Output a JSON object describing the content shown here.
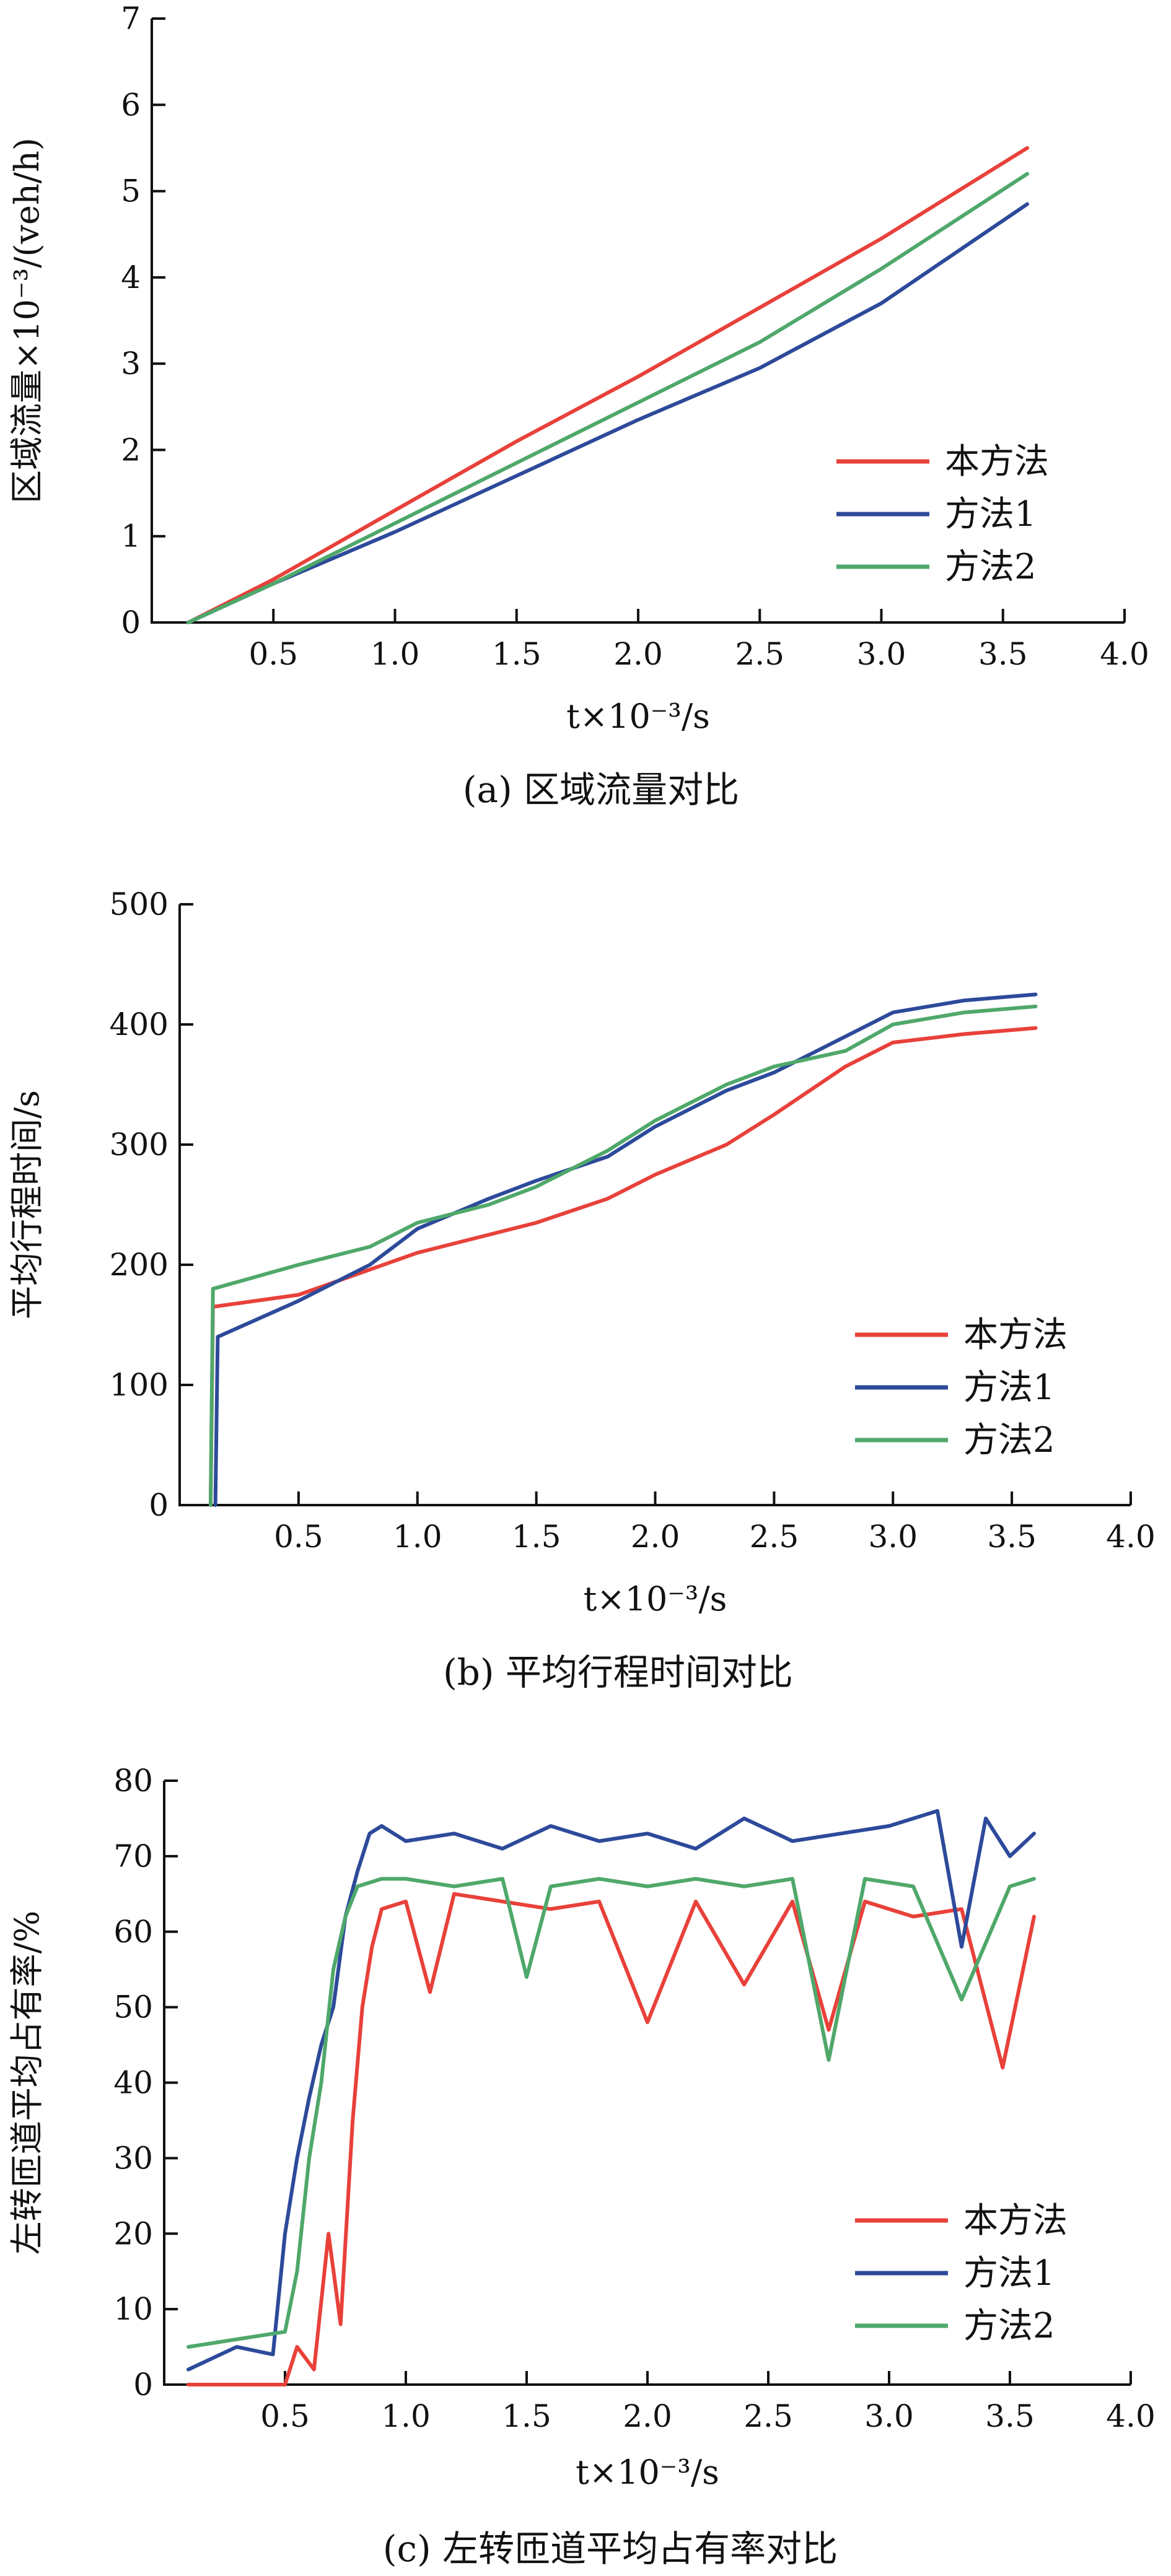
{
  "colors": {
    "method_this": "#e8413a",
    "method1": "#2d4a9a",
    "method2": "#4fa86a"
  },
  "chart_data": [
    {
      "type": "line",
      "caption": "(a) 区域流量对比",
      "xlabel": "t×10⁻³/s",
      "ylabel": "区域流量×10⁻³/(veh/h)",
      "xlim": [
        0,
        4.0
      ],
      "ylim": [
        0,
        7
      ],
      "xticks": [
        "0.5",
        "1.0",
        "1.5",
        "2.0",
        "2.5",
        "3.0",
        "3.5",
        "4.0"
      ],
      "yticks": [
        "0",
        "1",
        "2",
        "3",
        "4",
        "5",
        "6",
        "7"
      ],
      "legend_position": "bottom-right",
      "series": [
        {
          "name": "本方法",
          "color": "#e8413a",
          "x": [
            0.15,
            0.5,
            1.0,
            1.5,
            2.0,
            2.5,
            3.0,
            3.6
          ],
          "y": [
            0,
            0.5,
            1.3,
            2.1,
            2.85,
            3.65,
            4.45,
            5.5
          ]
        },
        {
          "name": "方法1",
          "color": "#2d4a9a",
          "x": [
            0.15,
            0.5,
            1.0,
            1.5,
            2.0,
            2.5,
            3.0,
            3.6
          ],
          "y": [
            0,
            0.45,
            1.05,
            1.7,
            2.35,
            2.95,
            3.7,
            4.85
          ]
        },
        {
          "name": "方法2",
          "color": "#4fa86a",
          "x": [
            0.15,
            0.5,
            1.0,
            1.5,
            2.0,
            2.5,
            3.0,
            3.6
          ],
          "y": [
            0,
            0.45,
            1.15,
            1.85,
            2.55,
            3.25,
            4.1,
            5.2
          ]
        }
      ]
    },
    {
      "type": "line",
      "caption": "(b) 平均行程时间对比",
      "xlabel": "t×10⁻³/s",
      "ylabel": "平均行程时间/s",
      "xlim": [
        0,
        4.0
      ],
      "ylim": [
        0,
        500
      ],
      "xticks": [
        "0.5",
        "1.0",
        "1.5",
        "2.0",
        "2.5",
        "3.0",
        "3.5",
        "4.0"
      ],
      "yticks": [
        "0",
        "100",
        "200",
        "300",
        "400",
        "500"
      ],
      "legend_position": "bottom-right",
      "series": [
        {
          "name": "本方法",
          "color": "#e8413a",
          "x": [
            0.13,
            0.14,
            0.5,
            1.0,
            1.5,
            1.8,
            2.0,
            2.3,
            2.5,
            2.8,
            3.0,
            3.3,
            3.6
          ],
          "y": [
            0,
            165,
            175,
            210,
            235,
            255,
            275,
            300,
            325,
            365,
            385,
            392,
            397
          ]
        },
        {
          "name": "方法1",
          "color": "#2d4a9a",
          "x": [
            0.15,
            0.16,
            0.5,
            0.8,
            1.0,
            1.3,
            1.5,
            1.8,
            2.0,
            2.3,
            2.5,
            2.8,
            3.0,
            3.3,
            3.6
          ],
          "y": [
            0,
            140,
            170,
            200,
            230,
            255,
            270,
            290,
            315,
            345,
            360,
            390,
            410,
            420,
            425
          ]
        },
        {
          "name": "方法2",
          "color": "#4fa86a",
          "x": [
            0.13,
            0.14,
            0.5,
            0.8,
            1.0,
            1.3,
            1.5,
            1.8,
            2.0,
            2.3,
            2.5,
            2.8,
            3.0,
            3.3,
            3.6
          ],
          "y": [
            0,
            180,
            200,
            215,
            235,
            250,
            265,
            295,
            320,
            350,
            365,
            378,
            400,
            410,
            415
          ]
        }
      ]
    },
    {
      "type": "line",
      "caption": "(c) 左转匝道平均占有率对比",
      "xlabel": "t×10⁻³/s",
      "ylabel": "左转匝道平均占有率/%",
      "xlim": [
        0,
        4.0
      ],
      "ylim": [
        0,
        80
      ],
      "xticks": [
        "0.5",
        "1.0",
        "1.5",
        "2.0",
        "2.5",
        "3.0",
        "3.5",
        "4.0"
      ],
      "yticks": [
        "0",
        "10",
        "20",
        "30",
        "40",
        "50",
        "60",
        "70",
        "80"
      ],
      "legend_position": "bottom-right",
      "series": [
        {
          "name": "本方法",
          "color": "#e8413a",
          "x": [
            0.1,
            0.5,
            0.55,
            0.62,
            0.68,
            0.73,
            0.78,
            0.82,
            0.86,
            0.9,
            1.0,
            1.1,
            1.2,
            1.4,
            1.6,
            1.8,
            2.0,
            2.2,
            2.4,
            2.6,
            2.75,
            2.9,
            3.1,
            3.3,
            3.47,
            3.6
          ],
          "y": [
            0,
            0,
            5,
            2,
            20,
            8,
            35,
            50,
            58,
            63,
            64,
            52,
            65,
            64,
            63,
            64,
            48,
            64,
            53,
            64,
            47,
            64,
            62,
            63,
            42,
            62
          ]
        },
        {
          "name": "方法1",
          "color": "#2d4a9a",
          "x": [
            0.1,
            0.3,
            0.45,
            0.5,
            0.55,
            0.6,
            0.65,
            0.7,
            0.75,
            0.8,
            0.85,
            0.9,
            1.0,
            1.2,
            1.4,
            1.6,
            1.8,
            2.0,
            2.2,
            2.4,
            2.6,
            2.8,
            3.0,
            3.2,
            3.3,
            3.4,
            3.5,
            3.6
          ],
          "y": [
            2,
            5,
            4,
            20,
            30,
            38,
            45,
            50,
            62,
            68,
            73,
            74,
            72,
            73,
            71,
            74,
            72,
            73,
            71,
            75,
            72,
            73,
            74,
            76,
            58,
            75,
            70,
            73
          ]
        },
        {
          "name": "方法2",
          "color": "#4fa86a",
          "x": [
            0.1,
            0.3,
            0.5,
            0.55,
            0.6,
            0.65,
            0.7,
            0.75,
            0.8,
            0.9,
            1.0,
            1.2,
            1.4,
            1.5,
            1.6,
            1.8,
            2.0,
            2.2,
            2.4,
            2.6,
            2.75,
            2.9,
            3.1,
            3.3,
            3.5,
            3.6
          ],
          "y": [
            5,
            6,
            7,
            15,
            30,
            40,
            55,
            62,
            66,
            67,
            67,
            66,
            67,
            54,
            66,
            67,
            66,
            67,
            66,
            67,
            43,
            67,
            66,
            51,
            66,
            67
          ]
        }
      ]
    }
  ]
}
